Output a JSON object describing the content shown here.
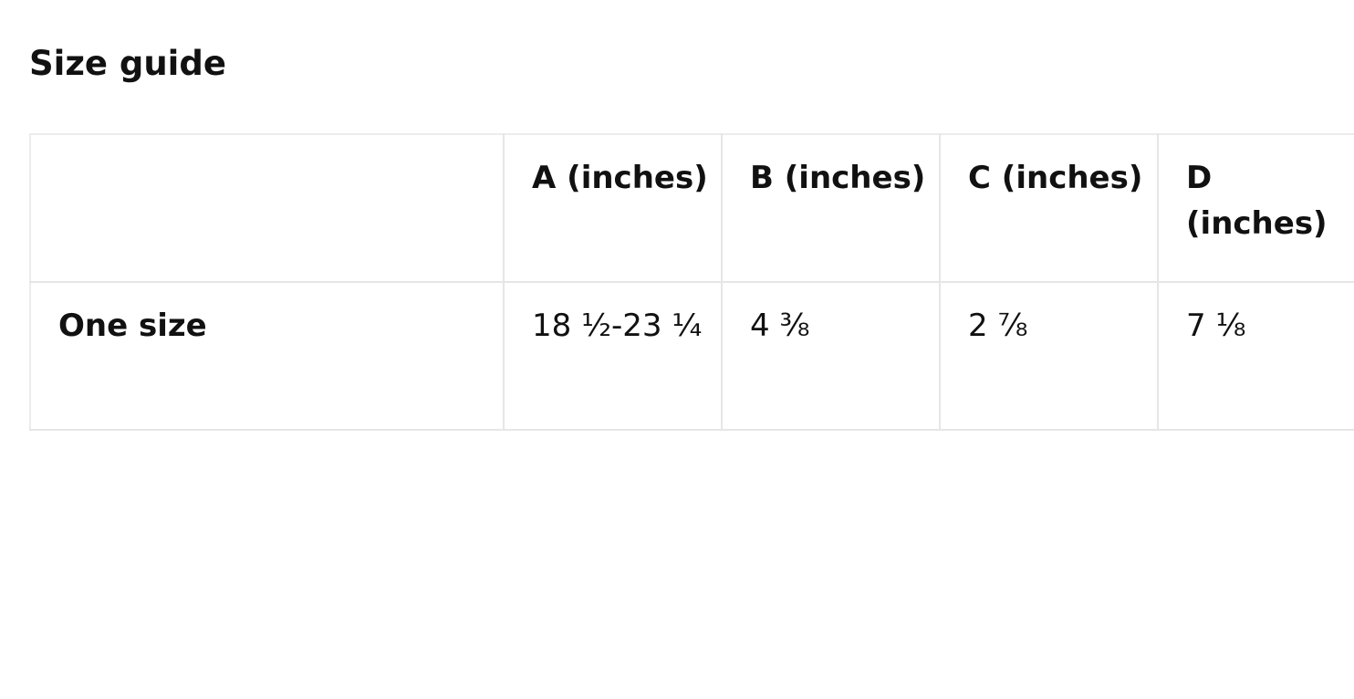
{
  "title": "Size guide",
  "table": {
    "headers": [
      "",
      "A (inches)",
      "B (inches)",
      "C (inches)",
      "D (inches)"
    ],
    "rows": [
      {
        "label": "One size",
        "values": [
          "18 ½-23 ¼",
          "4 ⅜",
          "2 ⅞",
          "7 ⅛"
        ]
      }
    ]
  }
}
